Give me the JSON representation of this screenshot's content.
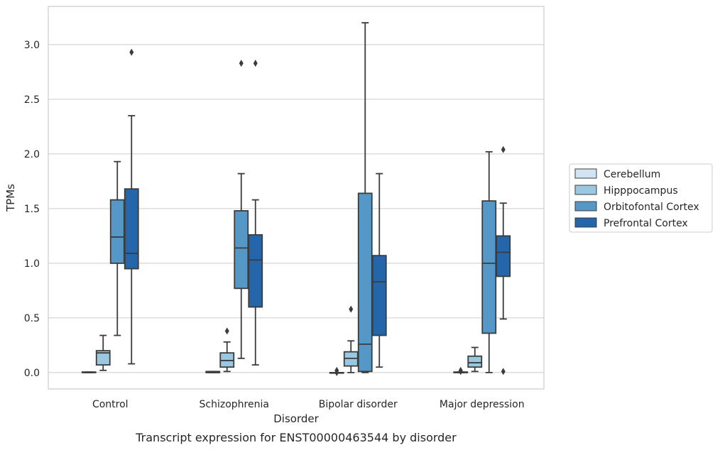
{
  "chart_data": {
    "type": "box",
    "xlabel": "Disorder",
    "ylabel": "TPMs",
    "caption": "Transcript expression for ENST00000463544 by disorder",
    "ylim": [
      -0.15,
      3.35
    ],
    "yticks": [
      "0.0",
      "0.5",
      "1.0",
      "1.5",
      "2.0",
      "2.5",
      "3.0"
    ],
    "grid": true,
    "legend_position": "right",
    "categories": [
      "Control",
      "Schizophrenia",
      "Bipolar disorder",
      "Major depression"
    ],
    "series": [
      {
        "name": "Cerebellum",
        "color": "#d2e3f3",
        "boxes": [
          {
            "q1": 0.0,
            "median": 0.0,
            "q3": 0.005,
            "whisker_low": 0.0,
            "whisker_high": 0.005,
            "outliers": []
          },
          {
            "q1": 0.0,
            "median": 0.0,
            "q3": 0.01,
            "whisker_low": 0.0,
            "whisker_high": 0.01,
            "outliers": []
          },
          {
            "q1": 0.0,
            "median": 0.0,
            "q3": 0.0,
            "whisker_low": 0.0,
            "whisker_high": 0.0,
            "outliers": [
              0.0,
              0.02
            ]
          },
          {
            "q1": 0.0,
            "median": 0.0,
            "q3": 0.005,
            "whisker_low": 0.0,
            "whisker_high": 0.005,
            "outliers": [
              0.01,
              0.02
            ]
          }
        ]
      },
      {
        "name": "Hipppocampus",
        "color": "#9ac8e0",
        "boxes": [
          {
            "q1": 0.07,
            "median": 0.18,
            "q3": 0.2,
            "whisker_low": 0.02,
            "whisker_high": 0.34,
            "outliers": []
          },
          {
            "q1": 0.05,
            "median": 0.11,
            "q3": 0.18,
            "whisker_low": 0.01,
            "whisker_high": 0.28,
            "outliers": [
              0.38
            ]
          },
          {
            "q1": 0.06,
            "median": 0.13,
            "q3": 0.19,
            "whisker_low": 0.0,
            "whisker_high": 0.29,
            "outliers": [
              0.58
            ]
          },
          {
            "q1": 0.05,
            "median": 0.09,
            "q3": 0.15,
            "whisker_low": 0.01,
            "whisker_high": 0.23,
            "outliers": []
          }
        ]
      },
      {
        "name": "Orbitofontal Cortex",
        "color": "#5597c7",
        "boxes": [
          {
            "q1": 1.0,
            "median": 1.24,
            "q3": 1.58,
            "whisker_low": 0.34,
            "whisker_high": 1.93,
            "outliers": []
          },
          {
            "q1": 0.77,
            "median": 1.14,
            "q3": 1.48,
            "whisker_low": 0.13,
            "whisker_high": 1.82,
            "outliers": [
              2.83
            ]
          },
          {
            "q1": 0.01,
            "median": 0.26,
            "q3": 1.64,
            "whisker_low": 0.0,
            "whisker_high": 3.2,
            "outliers": []
          },
          {
            "q1": 0.36,
            "median": 1.0,
            "q3": 1.57,
            "whisker_low": 0.0,
            "whisker_high": 2.02,
            "outliers": []
          }
        ]
      },
      {
        "name": "Prefrontal Cortex",
        "color": "#2565a9",
        "boxes": [
          {
            "q1": 0.95,
            "median": 1.09,
            "q3": 1.68,
            "whisker_low": 0.08,
            "whisker_high": 2.35,
            "outliers": [
              2.93
            ]
          },
          {
            "q1": 0.6,
            "median": 1.03,
            "q3": 1.26,
            "whisker_low": 0.07,
            "whisker_high": 1.58,
            "outliers": [
              2.83
            ]
          },
          {
            "q1": 0.34,
            "median": 0.83,
            "q3": 1.07,
            "whisker_low": 0.05,
            "whisker_high": 1.82,
            "outliers": []
          },
          {
            "q1": 0.88,
            "median": 1.1,
            "q3": 1.25,
            "whisker_low": 0.49,
            "whisker_high": 1.55,
            "outliers": [
              0.01,
              2.04
            ]
          }
        ]
      }
    ]
  }
}
